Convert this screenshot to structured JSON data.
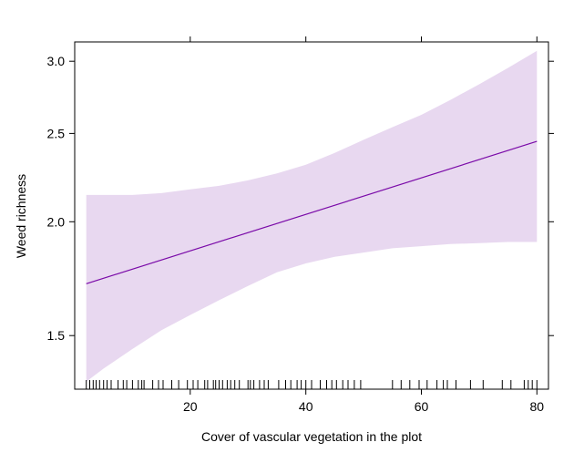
{
  "chart_data": {
    "type": "line",
    "title": "",
    "xlabel": "Cover of vascular vegetation in the plot",
    "ylabel": "Weed richness",
    "xlim": [
      0,
      82
    ],
    "ylim": [
      1.31,
      3.15
    ],
    "y_scale": "log",
    "grid": false,
    "legend": "none",
    "x_ticks": [
      {
        "value": 20,
        "label": "20"
      },
      {
        "value": 40,
        "label": "40"
      },
      {
        "value": 60,
        "label": "60"
      },
      {
        "value": 80,
        "label": "80"
      }
    ],
    "y_ticks": [
      {
        "value": 1.5,
        "label": "1.5"
      },
      {
        "value": 2.0,
        "label": "2.0"
      },
      {
        "value": 2.5,
        "label": "2.5"
      },
      {
        "value": 3.0,
        "label": "3.0"
      }
    ],
    "series": [
      {
        "x": [
          2,
          80
        ],
        "y": [
          1.71,
          2.45
        ],
        "color": "#7a0aa8"
      }
    ],
    "band": {
      "color": "#e8d8f0",
      "x": [
        2,
        5,
        10,
        15,
        20,
        25,
        30,
        35,
        40,
        45,
        50,
        55,
        60,
        65,
        70,
        75,
        80
      ],
      "lower": [
        1.335,
        1.38,
        1.45,
        1.52,
        1.58,
        1.64,
        1.7,
        1.76,
        1.8,
        1.83,
        1.85,
        1.87,
        1.88,
        1.89,
        1.895,
        1.9,
        1.9
      ],
      "upper": [
        2.14,
        2.14,
        2.14,
        2.15,
        2.17,
        2.19,
        2.22,
        2.26,
        2.31,
        2.38,
        2.46,
        2.54,
        2.62,
        2.72,
        2.83,
        2.95,
        3.08
      ]
    },
    "rug_x": [
      2,
      2.6,
      3.2,
      3.7,
      4.3,
      5,
      5.6,
      6.3,
      7.5,
      8.4,
      9,
      10,
      11,
      11.6,
      12,
      13.5,
      14.5,
      15.3,
      16.8,
      18,
      19.5,
      20.5,
      21.3,
      22.5,
      23,
      24,
      24.4,
      25,
      25.6,
      26.4,
      27,
      27.7,
      28.5,
      30,
      30.4,
      31,
      32,
      32.8,
      33.5,
      35.3,
      36.5,
      37.4,
      38.5,
      39.2,
      40,
      41,
      42.5,
      43.6,
      44.5,
      45.3,
      46.4,
      47.3,
      48.4,
      49.5,
      55,
      56.5,
      58,
      59.6,
      61,
      62.7,
      63.8,
      64.5,
      66,
      68.5,
      70.7,
      74,
      75.5,
      77.8,
      78.5,
      79.2,
      80
    ]
  }
}
